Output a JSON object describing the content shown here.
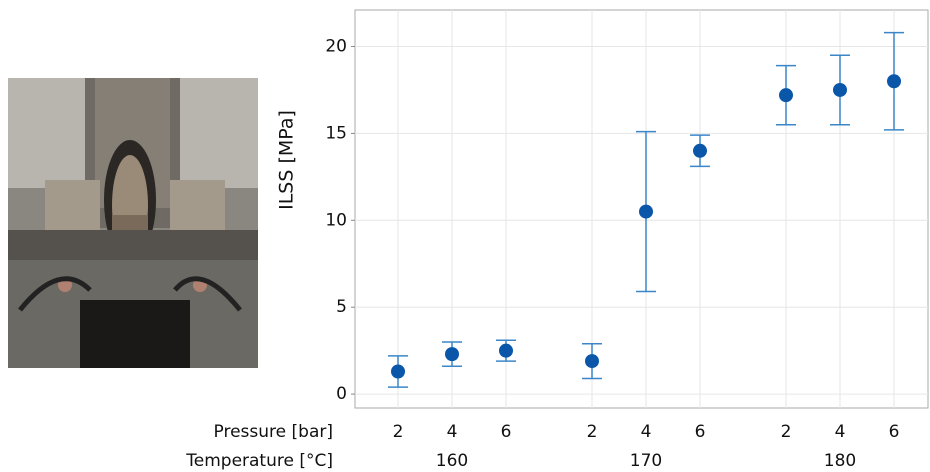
{
  "chart_data": {
    "type": "errorbar-scatter",
    "y_label": "ILSS [MPa]",
    "category_label": "Pressure [bar]",
    "categories": [
      "2",
      "4",
      "6",
      "2",
      "4",
      "6",
      "2",
      "4",
      "6"
    ],
    "group_label": "Temperature [°C]",
    "groups": [
      "160",
      "170",
      "180"
    ],
    "values": [
      1.3,
      2.3,
      2.5,
      1.9,
      10.5,
      14.0,
      17.2,
      17.5,
      18.0
    ],
    "errors": [
      0.9,
      0.7,
      0.6,
      1.0,
      4.6,
      0.9,
      1.7,
      2.0,
      2.8
    ],
    "color": "#0a56a8",
    "error_color": "#3a86c8",
    "ylim": [
      -0.8,
      22.1
    ],
    "yticks": [
      0,
      5,
      10,
      15,
      20
    ],
    "grid": true
  }
}
